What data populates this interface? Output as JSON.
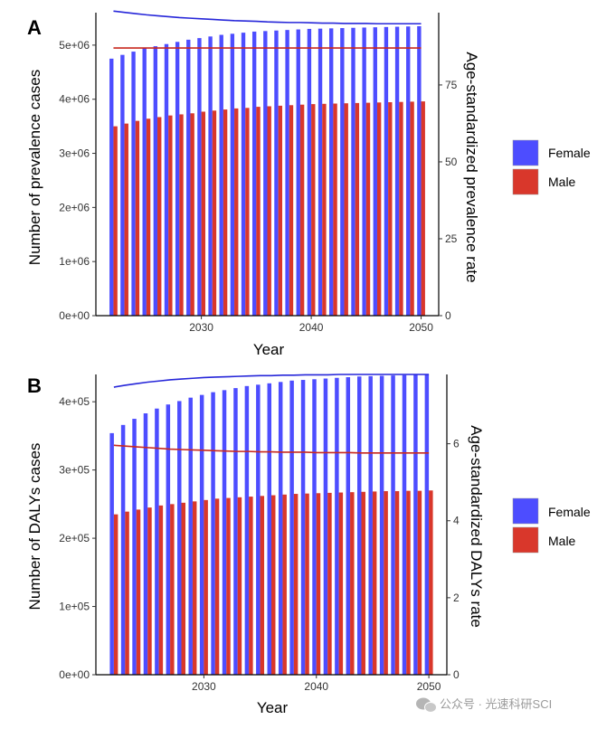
{
  "colors": {
    "female": "#4d4dff",
    "male": "#d9372b",
    "female_line": "#2626d9",
    "male_line": "#c8281e",
    "axis": "#000000"
  },
  "legend": [
    {
      "key": "female",
      "label": "Female"
    },
    {
      "key": "male",
      "label": "Male"
    }
  ],
  "watermark": {
    "text": "公众号 · 光速科研SCI",
    "icon": "wechat-icon"
  },
  "chart_data": [
    {
      "panel_label": "A",
      "type": "bar",
      "xlabel": "Year",
      "ylabel": "Number of prevalence cases",
      "y2label": "Age-standardized prevalence rate",
      "x": [
        2022,
        2023,
        2024,
        2025,
        2026,
        2027,
        2028,
        2029,
        2030,
        2031,
        2032,
        2033,
        2034,
        2035,
        2036,
        2037,
        2038,
        2039,
        2040,
        2041,
        2042,
        2043,
        2044,
        2045,
        2046,
        2047,
        2048,
        2049,
        2050
      ],
      "xticks": [
        2030,
        2040,
        2050
      ],
      "ylim": [
        0,
        5600000
      ],
      "yticks": [
        0,
        1000000,
        2000000,
        3000000,
        4000000,
        5000000
      ],
      "yticklabels": [
        "0e+00",
        "1e+06",
        "2e+06",
        "3e+06",
        "4e+06",
        "5e+06"
      ],
      "y2lim": [
        0,
        98.5
      ],
      "y2ticks": [
        0,
        25,
        50,
        75
      ],
      "series": [
        {
          "name": "Female",
          "kind": "bar",
          "axis": "left",
          "values": [
            4750000,
            4820000,
            4880000,
            4940000,
            4980000,
            5020000,
            5060000,
            5100000,
            5130000,
            5160000,
            5190000,
            5210000,
            5230000,
            5250000,
            5260000,
            5270000,
            5280000,
            5290000,
            5300000,
            5305000,
            5310000,
            5315000,
            5320000,
            5325000,
            5330000,
            5335000,
            5340000,
            5345000,
            5350000
          ]
        },
        {
          "name": "Male",
          "kind": "bar",
          "axis": "left",
          "values": [
            3500000,
            3550000,
            3600000,
            3640000,
            3670000,
            3700000,
            3720000,
            3740000,
            3770000,
            3790000,
            3810000,
            3830000,
            3840000,
            3860000,
            3870000,
            3880000,
            3890000,
            3900000,
            3910000,
            3915000,
            3920000,
            3925000,
            3930000,
            3935000,
            3940000,
            3945000,
            3950000,
            3955000,
            3960000
          ]
        },
        {
          "name": "Female",
          "kind": "line",
          "axis": "right",
          "values": [
            99.0,
            98.6,
            98.2,
            97.8,
            97.5,
            97.2,
            96.9,
            96.7,
            96.5,
            96.3,
            96.1,
            95.9,
            95.8,
            95.7,
            95.5,
            95.4,
            95.3,
            95.3,
            95.2,
            95.1,
            95.1,
            95.0,
            95.0,
            95.0,
            94.9,
            94.9,
            94.9,
            94.9,
            94.9
          ]
        },
        {
          "name": "Male",
          "kind": "line",
          "axis": "right",
          "values": [
            87.0,
            87.0,
            87.0,
            87.0,
            87.0,
            87.0,
            87.0,
            87.0,
            87.0,
            87.0,
            87.0,
            87.0,
            87.0,
            87.0,
            87.0,
            87.0,
            87.0,
            87.0,
            87.0,
            87.0,
            87.0,
            87.0,
            87.0,
            87.0,
            87.0,
            87.0,
            87.0,
            87.0,
            87.0
          ]
        }
      ]
    },
    {
      "panel_label": "B",
      "type": "bar",
      "xlabel": "Year",
      "ylabel": "Number of DALYs cases",
      "y2label": "Age-standardized DALYs rate",
      "x": [
        2022,
        2023,
        2024,
        2025,
        2026,
        2027,
        2028,
        2029,
        2030,
        2031,
        2032,
        2033,
        2034,
        2035,
        2036,
        2037,
        2038,
        2039,
        2040,
        2041,
        2042,
        2043,
        2044,
        2045,
        2046,
        2047,
        2048,
        2049,
        2050
      ],
      "xticks": [
        2030,
        2040,
        2050
      ],
      "ylim": [
        0,
        440000
      ],
      "yticks": [
        0,
        100000,
        200000,
        300000,
        400000
      ],
      "yticklabels": [
        "0e+00",
        "1e+05",
        "2e+05",
        "3e+05",
        "4e+05"
      ],
      "y2lim": [
        0,
        7.8
      ],
      "y2ticks": [
        0,
        2,
        4,
        6
      ],
      "series": [
        {
          "name": "Female",
          "kind": "bar",
          "axis": "left",
          "values": [
            354000,
            366000,
            375000,
            383000,
            390000,
            396000,
            401000,
            406000,
            410000,
            414000,
            417000,
            420000,
            423000,
            425000,
            427000,
            429000,
            431000,
            432000,
            433000,
            434000,
            435000,
            436000,
            437000,
            437500,
            438000,
            438500,
            439000,
            439500,
            440000
          ]
        },
        {
          "name": "Male",
          "kind": "bar",
          "axis": "left",
          "values": [
            235000,
            239000,
            242000,
            245000,
            248000,
            250000,
            252000,
            254000,
            256000,
            258000,
            259000,
            260000,
            261000,
            262000,
            263000,
            264000,
            265000,
            265500,
            266000,
            266500,
            267000,
            267500,
            268000,
            268500,
            269000,
            269000,
            269500,
            269500,
            270000
          ]
        },
        {
          "name": "Female",
          "kind": "line",
          "axis": "right",
          "values": [
            7.47,
            7.52,
            7.56,
            7.6,
            7.63,
            7.66,
            7.68,
            7.7,
            7.72,
            7.73,
            7.74,
            7.75,
            7.76,
            7.77,
            7.77,
            7.78,
            7.78,
            7.79,
            7.79,
            7.79,
            7.8,
            7.8,
            7.8,
            7.8,
            7.8,
            7.8,
            7.8,
            7.8,
            7.8
          ]
        },
        {
          "name": "Male",
          "kind": "line",
          "axis": "right",
          "values": [
            5.96,
            5.94,
            5.92,
            5.9,
            5.88,
            5.86,
            5.85,
            5.84,
            5.83,
            5.82,
            5.81,
            5.8,
            5.8,
            5.79,
            5.79,
            5.78,
            5.78,
            5.78,
            5.77,
            5.77,
            5.77,
            5.77,
            5.76,
            5.76,
            5.76,
            5.76,
            5.76,
            5.76,
            5.76
          ]
        }
      ]
    }
  ]
}
